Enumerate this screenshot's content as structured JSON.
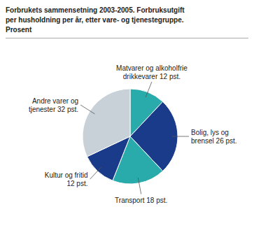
{
  "chart_data": {
    "type": "pie",
    "title": "Forbrukets sammensetning 2003-2005. Forbruksutgift\nper husholdning per år, etter vare- og tjenestegruppe.\nProsent",
    "categories": [
      "Matvarer og alkoholfrie\ndrikkevarer 12 pst.",
      "Bolig, lys og\nbrensel 26 pst.",
      "Transport 18 pst.",
      "Kultur og fritid\n12 pst.",
      "Andre varer og\ntjenester 32 pst."
    ],
    "values": [
      12,
      26,
      18,
      12,
      32
    ],
    "colors": [
      "#2aabab",
      "#1a3a8a",
      "#2aabab",
      "#1a3a8a",
      "#c8d0d8"
    ]
  }
}
